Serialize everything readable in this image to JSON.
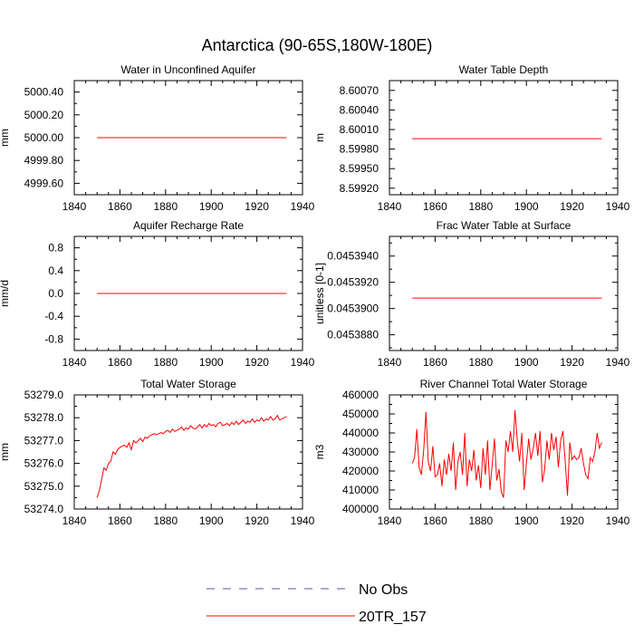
{
  "figure": {
    "title": "Antarctica (90-65S,180W-180E)"
  },
  "legend": {
    "entries": [
      {
        "label": "No Obs",
        "color": "#5555aa",
        "dashed": true
      },
      {
        "label": "20TR_157",
        "color": "#ff0000",
        "dashed": false
      }
    ]
  },
  "chart_data": [
    {
      "type": "line",
      "title": "Water in Unconfined Aquifer",
      "xlabel": "",
      "ylabel": "mm",
      "xlim": [
        1840,
        1940
      ],
      "ylim": [
        4999.5,
        5000.5
      ],
      "xticks": [
        1840,
        1860,
        1880,
        1900,
        1920,
        1940
      ],
      "xticklabels": [
        "1840",
        "1860",
        "1880",
        "1900",
        "1920",
        "1940"
      ],
      "yticks": [
        4999.6,
        4999.8,
        5000.0,
        5000.2,
        5000.4
      ],
      "yticklabels": [
        "4999.60",
        "4999.80",
        "5000.00",
        "5000.20",
        "5000.40"
      ],
      "series": [
        {
          "name": "20TR_157",
          "color": "#ff0000",
          "x": [
            1850,
            1933
          ],
          "y": [
            5000.0,
            5000.0
          ]
        }
      ]
    },
    {
      "type": "line",
      "title": "Water Table Depth",
      "xlabel": "",
      "ylabel": "m",
      "xlim": [
        1840,
        1940
      ],
      "ylim": [
        8.5991,
        8.60085
      ],
      "xticks": [
        1840,
        1860,
        1880,
        1900,
        1920,
        1940
      ],
      "xticklabels": [
        "1840",
        "1860",
        "1880",
        "1900",
        "1920",
        "1940"
      ],
      "yticks": [
        8.5992,
        8.5995,
        8.5998,
        8.6001,
        8.6004,
        8.6007
      ],
      "yticklabels": [
        "8.59920",
        "8.59950",
        "8.59980",
        "8.60010",
        "8.60040",
        "8.60070"
      ],
      "series": [
        {
          "name": "20TR_157",
          "color": "#ff0000",
          "x": [
            1850,
            1933
          ],
          "y": [
            8.59996,
            8.59996
          ]
        }
      ]
    },
    {
      "type": "line",
      "title": "Aquifer Recharge Rate",
      "xlabel": "",
      "ylabel": "mm/d",
      "xlim": [
        1840,
        1940
      ],
      "ylim": [
        -1.0,
        1.0
      ],
      "xticks": [
        1840,
        1860,
        1880,
        1900,
        1920,
        1940
      ],
      "xticklabels": [
        "1840",
        "1860",
        "1880",
        "1900",
        "1920",
        "1940"
      ],
      "yticks": [
        -0.8,
        -0.4,
        0.0,
        0.4,
        0.8
      ],
      "yticklabels": [
        "-0.8",
        "-0.4",
        "0.0",
        "0.4",
        "0.8"
      ],
      "series": [
        {
          "name": "20TR_157",
          "color": "#ff0000",
          "x": [
            1850,
            1933
          ],
          "y": [
            0.0,
            0.0
          ]
        }
      ]
    },
    {
      "type": "line",
      "title": "Frac Water Table at Surface",
      "xlabel": "",
      "ylabel": "unitless [0-1]",
      "xlim": [
        1840,
        1940
      ],
      "ylim": [
        0.0453868,
        0.0453955
      ],
      "xticks": [
        1840,
        1860,
        1880,
        1900,
        1920,
        1940
      ],
      "xticklabels": [
        "1840",
        "1860",
        "1880",
        "1900",
        "1920",
        "1940"
      ],
      "yticks": [
        0.045388,
        0.04539,
        0.045392,
        0.045394
      ],
      "yticklabels": [
        "0.0453880",
        "0.0453900",
        "0.0453920",
        "0.0453940"
      ],
      "series": [
        {
          "name": "20TR_157",
          "color": "#ff0000",
          "x": [
            1850,
            1933
          ],
          "y": [
            0.0453908,
            0.0453908
          ]
        }
      ]
    },
    {
      "type": "line",
      "title": "Total Water Storage",
      "xlabel": "",
      "ylabel": "mm",
      "xlim": [
        1840,
        1940
      ],
      "ylim": [
        53274.0,
        53279.0
      ],
      "xticks": [
        1840,
        1860,
        1880,
        1900,
        1920,
        1940
      ],
      "xticklabels": [
        "1840",
        "1860",
        "1880",
        "1900",
        "1920",
        "1940"
      ],
      "yticks": [
        53274.0,
        53275.0,
        53276.0,
        53277.0,
        53278.0,
        53279.0
      ],
      "yticklabels": [
        "53274.0",
        "53275.0",
        "53276.0",
        "53277.0",
        "53278.0",
        "53279.0"
      ],
      "series": [
        {
          "name": "20TR_157",
          "color": "#ff0000",
          "x": [
            1850,
            1851,
            1852,
            1853,
            1854,
            1855,
            1856,
            1857,
            1858,
            1859,
            1860,
            1861,
            1862,
            1863,
            1864,
            1865,
            1866,
            1867,
            1868,
            1869,
            1870,
            1871,
            1872,
            1873,
            1874,
            1875,
            1876,
            1877,
            1878,
            1879,
            1880,
            1881,
            1882,
            1883,
            1884,
            1885,
            1886,
            1887,
            1888,
            1889,
            1890,
            1891,
            1892,
            1893,
            1894,
            1895,
            1896,
            1897,
            1898,
            1899,
            1900,
            1901,
            1902,
            1903,
            1904,
            1905,
            1906,
            1907,
            1908,
            1909,
            1910,
            1911,
            1912,
            1913,
            1914,
            1915,
            1916,
            1917,
            1918,
            1919,
            1920,
            1921,
            1922,
            1923,
            1924,
            1925,
            1926,
            1927,
            1928,
            1929,
            1930,
            1931,
            1932,
            1933
          ],
          "y": [
            53274.5,
            53274.8,
            53275.3,
            53275.8,
            53275.7,
            53276.0,
            53276.1,
            53276.5,
            53276.4,
            53276.6,
            53276.7,
            53276.75,
            53276.8,
            53276.7,
            53276.9,
            53276.6,
            53277.0,
            53276.9,
            53277.0,
            53277.1,
            53276.95,
            53277.15,
            53277.1,
            53277.2,
            53277.25,
            53277.3,
            53277.25,
            53277.3,
            53277.35,
            53277.3,
            53277.4,
            53277.45,
            53277.35,
            53277.5,
            53277.4,
            53277.45,
            53277.5,
            53277.6,
            53277.45,
            53277.55,
            53277.5,
            53277.65,
            53277.55,
            53277.5,
            53277.6,
            53277.7,
            53277.55,
            53277.7,
            53277.6,
            53277.75,
            53277.65,
            53277.7,
            53277.6,
            53277.75,
            53277.8,
            53277.65,
            53277.7,
            53277.75,
            53277.65,
            53277.8,
            53277.7,
            53277.85,
            53277.7,
            53277.8,
            53277.9,
            53277.75,
            53277.85,
            53277.8,
            53277.95,
            53277.8,
            53277.9,
            53277.85,
            53278.0,
            53277.85,
            53277.95,
            53277.9,
            53278.05,
            53277.9,
            53277.95,
            53278.1,
            53277.9,
            53277.95,
            53278.0,
            53278.05
          ]
        }
      ]
    },
    {
      "type": "line",
      "title": "River Channel Total Water Storage",
      "xlabel": "",
      "ylabel": "m3",
      "xlim": [
        1840,
        1940
      ],
      "ylim": [
        400000,
        460000
      ],
      "xticks": [
        1840,
        1860,
        1880,
        1900,
        1920,
        1940
      ],
      "xticklabels": [
        "1840",
        "1860",
        "1880",
        "1900",
        "1920",
        "1940"
      ],
      "yticks": [
        400000,
        410000,
        420000,
        430000,
        440000,
        450000,
        460000
      ],
      "yticklabels": [
        "400000",
        "410000",
        "420000",
        "430000",
        "440000",
        "450000",
        "460000"
      ],
      "series": [
        {
          "name": "20TR_157",
          "color": "#ff0000",
          "x": [
            1850,
            1851,
            1852,
            1853,
            1854,
            1855,
            1856,
            1857,
            1858,
            1859,
            1860,
            1861,
            1862,
            1863,
            1864,
            1865,
            1866,
            1867,
            1868,
            1869,
            1870,
            1871,
            1872,
            1873,
            1874,
            1875,
            1876,
            1877,
            1878,
            1879,
            1880,
            1881,
            1882,
            1883,
            1884,
            1885,
            1886,
            1887,
            1888,
            1889,
            1890,
            1891,
            1892,
            1893,
            1894,
            1895,
            1896,
            1897,
            1898,
            1899,
            1900,
            1901,
            1902,
            1903,
            1904,
            1905,
            1906,
            1907,
            1908,
            1909,
            1910,
            1911,
            1912,
            1913,
            1914,
            1915,
            1916,
            1917,
            1918,
            1919,
            1920,
            1921,
            1922,
            1923,
            1924,
            1925,
            1926,
            1927,
            1928,
            1929,
            1930,
            1931,
            1932,
            1933
          ],
          "y": [
            424000,
            427000,
            442000,
            422000,
            418000,
            431000,
            451000,
            425000,
            420000,
            433000,
            417000,
            418000,
            424000,
            412000,
            426000,
            418000,
            429000,
            420000,
            435000,
            410000,
            425000,
            430000,
            418000,
            440000,
            412000,
            426000,
            420000,
            431000,
            415000,
            423000,
            411000,
            432000,
            418000,
            436000,
            410000,
            423000,
            437000,
            415000,
            421000,
            409000,
            406000,
            436000,
            430000,
            441000,
            430000,
            452000,
            436000,
            425000,
            440000,
            410000,
            424000,
            437000,
            426000,
            432000,
            440000,
            428000,
            441000,
            414000,
            421000,
            436000,
            426000,
            440000,
            431000,
            438000,
            422000,
            436000,
            441000,
            425000,
            407000,
            435000,
            426000,
            428000,
            426000,
            427000,
            432000,
            424000,
            418000,
            416000,
            427000,
            425000,
            430000,
            440000,
            432000,
            435000
          ]
        }
      ]
    }
  ]
}
